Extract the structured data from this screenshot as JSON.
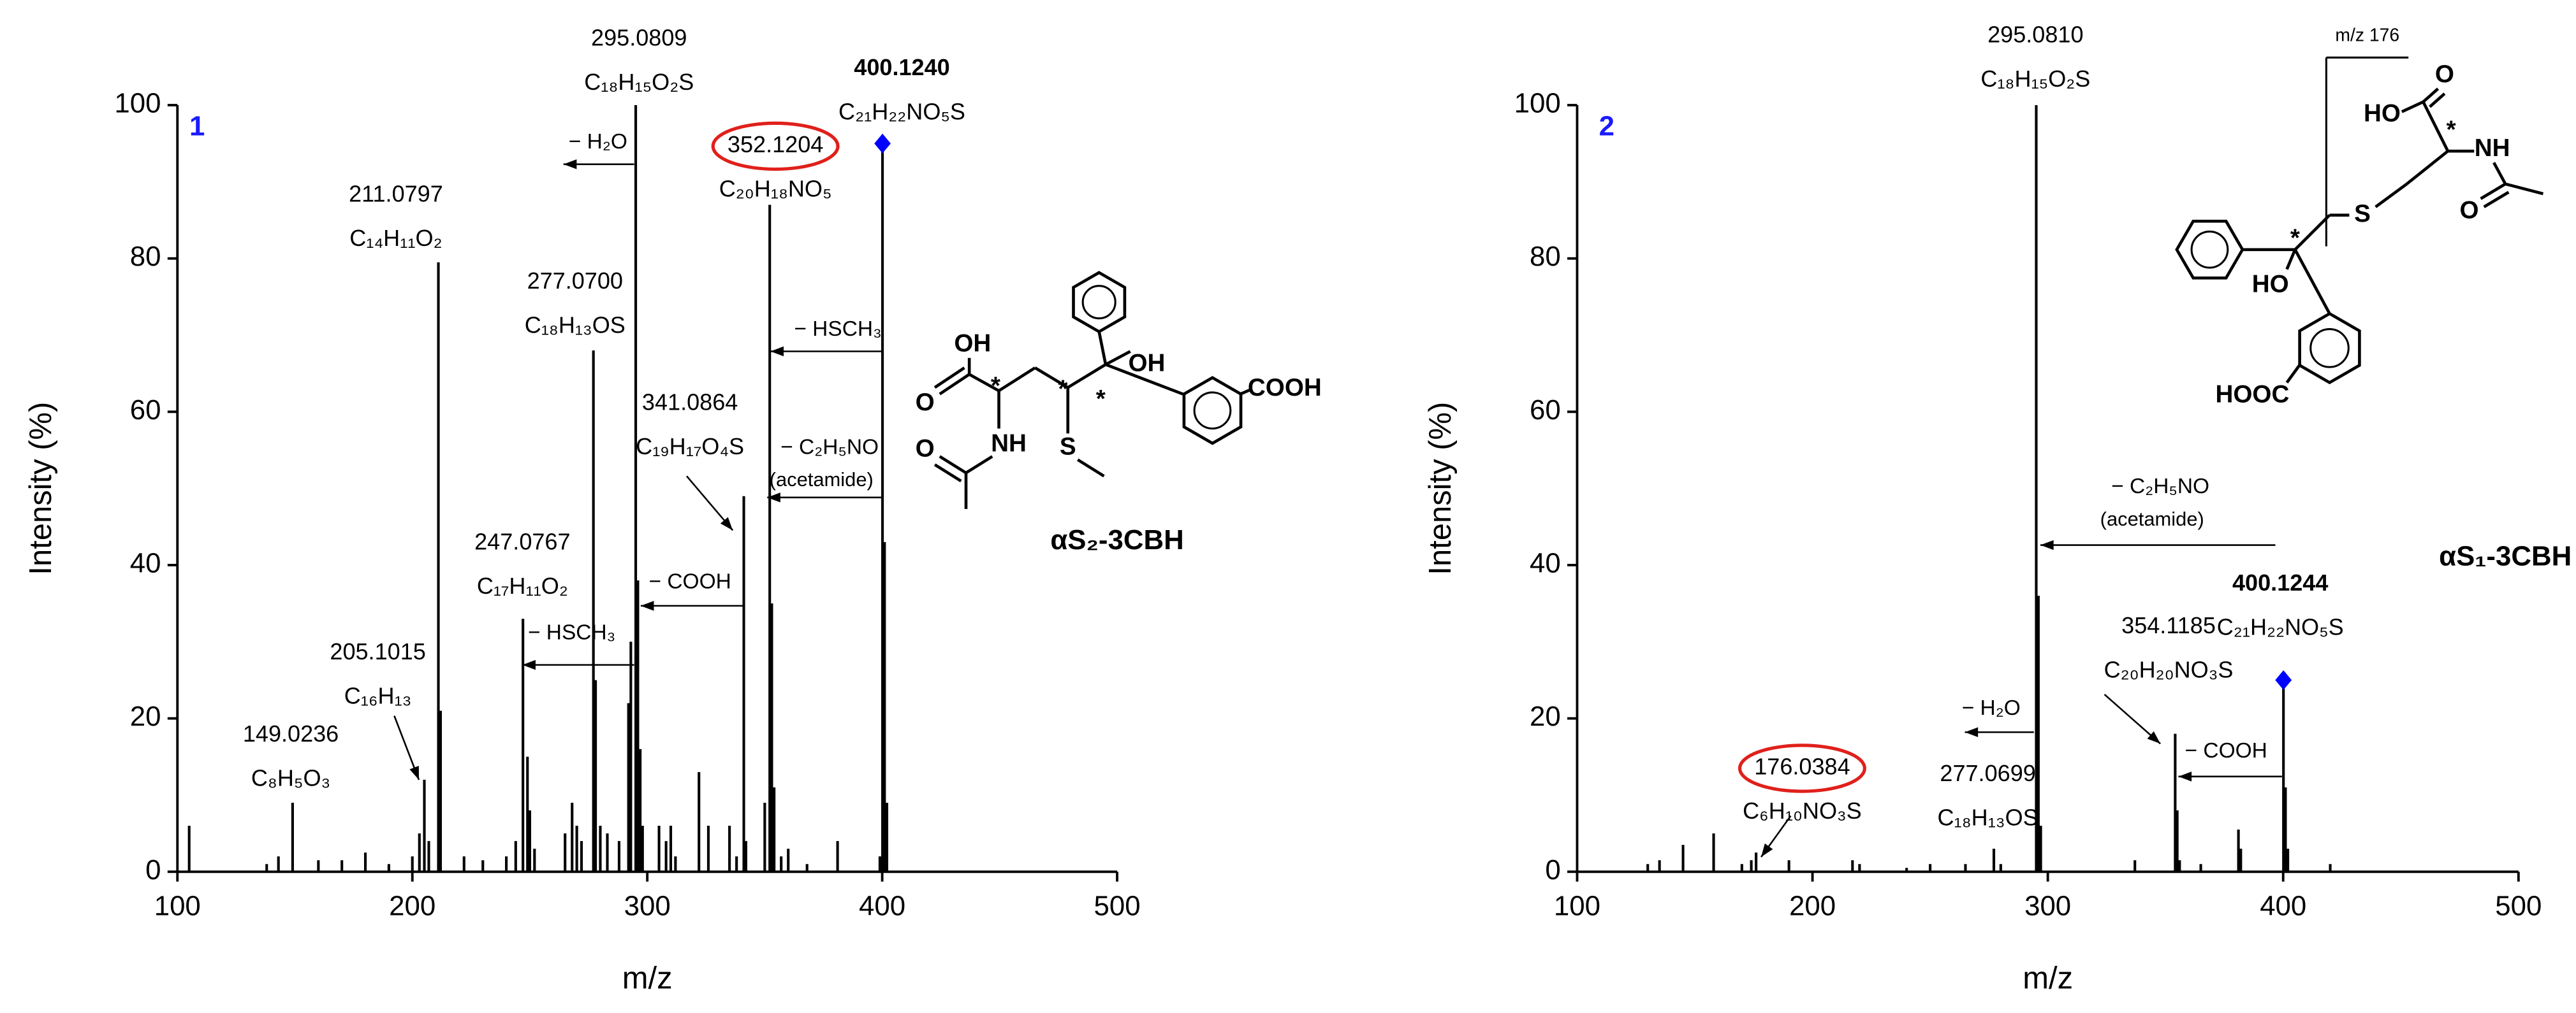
{
  "chart_data": [
    {
      "type": "bar",
      "panel": "1",
      "xlabel": "m/z",
      "ylabel": "Intensity (%)",
      "xlim": [
        100,
        500
      ],
      "ylim": [
        0,
        100
      ],
      "xticks": [
        100,
        200,
        300,
        400,
        500
      ],
      "yticks": [
        0,
        20,
        40,
        60,
        80,
        100
      ],
      "grid": false,
      "color": "#000000",
      "marker_color": "#0000ff",
      "panel_color": "#1a1aff",
      "highlight_color": "#e0201b",
      "x": [
        105,
        138,
        143,
        149.0236,
        160,
        170,
        180,
        190,
        200,
        203,
        205.1015,
        207,
        211.0797,
        212,
        222,
        230,
        240,
        244,
        247.0767,
        249,
        250,
        252,
        265,
        268,
        270,
        272,
        277.07,
        278,
        280,
        283,
        288,
        292,
        293,
        295.0809,
        296,
        297,
        298,
        305,
        308,
        310,
        312,
        322,
        326,
        335,
        338,
        341.0864,
        342,
        350,
        352.1204,
        353,
        354,
        357,
        360,
        368,
        381,
        399,
        400.124,
        401,
        402
      ],
      "values": [
        6,
        1,
        2,
        9,
        1.5,
        1.5,
        2.5,
        1,
        2,
        5,
        12,
        4,
        79.5,
        21,
        2,
        1.5,
        2,
        4,
        33,
        15,
        8,
        3,
        5,
        9,
        6,
        4,
        68,
        25,
        6,
        5,
        4,
        22,
        30,
        100,
        38,
        16,
        6,
        6,
        4,
        6,
        2,
        13,
        6,
        6,
        2,
        49,
        4,
        9,
        87,
        35,
        11,
        2,
        3,
        1,
        4,
        2,
        95,
        43,
        9
      ],
      "annotations": [
        {
          "mz": "149.0236",
          "formula": "C₈H₅O₃"
        },
        {
          "mz": "205.1015",
          "formula": "C₁₆H₁₃"
        },
        {
          "mz": "211.0797",
          "formula": "C₁₄H₁₁O₂"
        },
        {
          "mz": "247.0767",
          "formula": "C₁₇H₁₁O₂"
        },
        {
          "mz": "277.0700",
          "formula": "C₁₈H₁₃OS"
        },
        {
          "mz": "295.0809",
          "formula": "C₁₈H₁₅O₂S"
        },
        {
          "mz": "341.0864",
          "formula": "C₁₉H₁₇O₄S"
        },
        {
          "mz": "352.1204",
          "formula": "C₂₀H₁₈NO₅",
          "circled": true
        },
        {
          "mz": "400.1240",
          "formula": "C₂₁H₂₂NO₅S",
          "bold": true
        }
      ],
      "losses": [
        {
          "text": "− H₂O"
        },
        {
          "text": "− HSCH₃"
        },
        {
          "text": "− C₂H₅NO",
          "note": "(acetamide)"
        },
        {
          "text": "− COOH"
        },
        {
          "text": "− HSCH₃"
        }
      ],
      "compound": "αS₂-3CBH",
      "structure": {
        "atoms": [
          "OH",
          "O",
          "NH",
          "O",
          "S",
          "OH",
          "COOH",
          "*",
          "*",
          "*"
        ]
      }
    },
    {
      "type": "bar",
      "panel": "2",
      "xlabel": "m/z",
      "ylabel": "Intensity (%)",
      "xlim": [
        100,
        500
      ],
      "ylim": [
        0,
        100
      ],
      "xticks": [
        100,
        200,
        300,
        400,
        500
      ],
      "yticks": [
        0,
        20,
        40,
        60,
        80,
        100
      ],
      "grid": false,
      "color": "#000000",
      "marker_color": "#0000ff",
      "panel_color": "#1a1aff",
      "highlight_color": "#e0201b",
      "x": [
        130,
        135,
        145,
        158,
        170,
        174,
        176.0384,
        190,
        217,
        220,
        240,
        250,
        265,
        277.0699,
        280,
        295.081,
        296,
        297,
        337,
        354.1185,
        355,
        356,
        365,
        381,
        382,
        400.1244,
        401,
        402,
        420
      ],
      "values": [
        1,
        1.5,
        3.5,
        5,
        1,
        1.5,
        2.5,
        1.5,
        1.5,
        1,
        0.5,
        1,
        1,
        3,
        1,
        100,
        36,
        6,
        1.5,
        18,
        8,
        1.5,
        1,
        5.5,
        3,
        25,
        11,
        3,
        1
      ],
      "annotations": [
        {
          "mz": "176.0384",
          "formula": "C₆H₁₀NO₃S",
          "circled": true
        },
        {
          "mz": "277.0699",
          "formula": "C₁₈H₁₃OS"
        },
        {
          "mz": "295.0810",
          "formula": "C₁₈H₁₅O₂S"
        },
        {
          "mz": "354.1185",
          "formula": "C₂₀H₂₀NO₃S"
        },
        {
          "mz": "400.1244",
          "formula": "C₂₁H₂₂NO₅S",
          "bold": true
        }
      ],
      "losses": [
        {
          "text": "− C₂H₅NO",
          "note": "(acetamide)"
        },
        {
          "text": "− H₂O"
        },
        {
          "text": "− COOH"
        }
      ],
      "compound": "αS₁-3CBH",
      "structure": {
        "cut_label": "m/z 176",
        "atoms": [
          "O",
          "HO",
          "NH",
          "O",
          "S",
          "HO",
          "HOOC",
          "*",
          "*"
        ]
      }
    }
  ]
}
